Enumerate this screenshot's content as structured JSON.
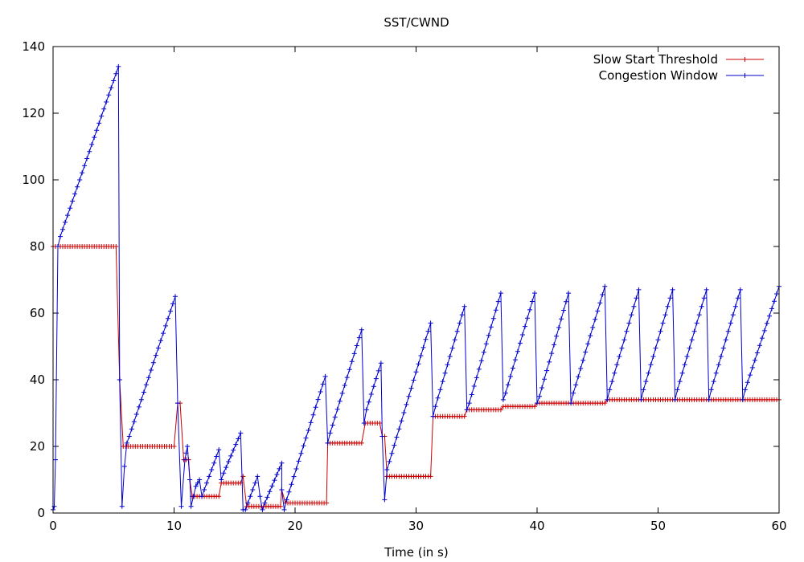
{
  "chart_data": {
    "type": "line",
    "title": "SST/CWND",
    "xlabel": "Time (in s)",
    "ylabel": "",
    "xlim": [
      0,
      60
    ],
    "ylim": [
      0,
      140
    ],
    "xticks": [
      0,
      10,
      20,
      30,
      40,
      50,
      60
    ],
    "yticks": [
      0,
      20,
      40,
      60,
      80,
      100,
      120,
      140
    ],
    "grid": false,
    "legend_position": "top-right",
    "series": [
      {
        "name": "Slow Start Threshold",
        "color": "#cc0000",
        "marker": "plus",
        "segments": [
          {
            "x0": 0,
            "x1": 5.3,
            "step": 0.2,
            "y": 80
          },
          {
            "x0": 5.5,
            "x1": 5.5,
            "step": 0.2,
            "y": 40
          },
          {
            "x0": 5.8,
            "x1": 10.0,
            "step": 0.2,
            "y": 20
          },
          {
            "x0": 10.3,
            "x1": 10.5,
            "step": 0.2,
            "y": 33
          },
          {
            "x0": 10.8,
            "x1": 11.2,
            "step": 0.2,
            "y": 16
          },
          {
            "x0": 11.3,
            "x1": 11.3,
            "step": 0.2,
            "y": 10
          },
          {
            "x0": 11.5,
            "x1": 13.7,
            "step": 0.2,
            "y": 5
          },
          {
            "x0": 13.9,
            "x1": 15.5,
            "step": 0.2,
            "y": 9
          },
          {
            "x0": 15.7,
            "x1": 15.7,
            "step": 0.2,
            "y": 11
          },
          {
            "x0": 16.0,
            "x1": 18.8,
            "step": 0.2,
            "y": 2
          },
          {
            "x0": 18.9,
            "x1": 18.9,
            "step": 0.2,
            "y": 7
          },
          {
            "x0": 19.2,
            "x1": 22.5,
            "step": 0.2,
            "y": 3
          },
          {
            "x0": 22.7,
            "x1": 25.5,
            "step": 0.2,
            "y": 21
          },
          {
            "x0": 25.8,
            "x1": 27.0,
            "step": 0.2,
            "y": 27
          },
          {
            "x0": 27.2,
            "x1": 27.4,
            "step": 0.2,
            "y": 23
          },
          {
            "x0": 27.6,
            "x1": 31.2,
            "step": 0.2,
            "y": 11
          },
          {
            "x0": 31.4,
            "x1": 34.0,
            "step": 0.2,
            "y": 29
          },
          {
            "x0": 34.2,
            "x1": 37.0,
            "step": 0.2,
            "y": 31
          },
          {
            "x0": 37.2,
            "x1": 39.8,
            "step": 0.2,
            "y": 32
          },
          {
            "x0": 40.0,
            "x1": 45.6,
            "step": 0.2,
            "y": 33
          },
          {
            "x0": 45.8,
            "x1": 60.0,
            "step": 0.2,
            "y": 34
          }
        ]
      },
      {
        "name": "Congestion Window",
        "color": "#0000cc",
        "marker": "plus",
        "points": [
          [
            0.0,
            1
          ],
          [
            0.1,
            2
          ],
          [
            0.2,
            16
          ],
          [
            0.4,
            80
          ],
          {
            "ramp": [
              0.6,
              5.3,
              0.2,
              83,
              134
            ]
          },
          [
            5.5,
            40
          ],
          [
            5.7,
            2
          ],
          [
            5.9,
            14
          ],
          [
            6.1,
            21
          ],
          {
            "ramp": [
              6.3,
              10.0,
              0.2,
              23,
              65
            ]
          },
          [
            10.3,
            33
          ],
          [
            10.6,
            2
          ],
          [
            10.9,
            16
          ],
          {
            "ramp": [
              11.0,
              11.1,
              0.1,
              18,
              20
            ]
          },
          [
            11.3,
            10
          ],
          [
            11.4,
            2
          ],
          [
            11.6,
            5
          ],
          {
            "ramp": [
              11.8,
              12.1,
              0.15,
              8,
              10
            ]
          },
          [
            12.3,
            5
          ],
          {
            "ramp": [
              12.5,
              13.7,
              0.2,
              7,
              19
            ]
          },
          [
            13.9,
            10
          ],
          {
            "ramp": [
              14.1,
              15.5,
              0.2,
              12,
              24
            ]
          },
          [
            15.7,
            1
          ],
          [
            15.9,
            1
          ],
          {
            "ramp": [
              16.1,
              16.9,
              0.2,
              3,
              11
            ]
          },
          [
            17.1,
            5
          ],
          [
            17.3,
            1
          ],
          {
            "ramp": [
              17.5,
              18.8,
              0.2,
              3,
              15
            ]
          },
          [
            18.9,
            7
          ],
          [
            19.1,
            1
          ],
          {
            "ramp": [
              19.3,
              22.5,
              0.2,
              4,
              41
            ]
          },
          [
            22.7,
            21
          ],
          {
            "ramp": [
              22.9,
              25.5,
              0.2,
              24,
              55
            ]
          },
          [
            25.7,
            27
          ],
          {
            "ramp": [
              25.9,
              27.0,
              0.2,
              31,
              45
            ]
          },
          [
            27.2,
            23
          ],
          [
            27.4,
            4
          ],
          {
            "ramp": [
              27.6,
              31.2,
              0.2,
              13,
              57
            ]
          },
          [
            31.4,
            29
          ],
          {
            "ramp": [
              31.6,
              34.0,
              0.2,
              32,
              62
            ]
          },
          [
            34.2,
            31
          ],
          {
            "ramp": [
              34.4,
              37.0,
              0.2,
              33,
              66
            ]
          },
          [
            37.2,
            34
          ],
          {
            "ramp": [
              37.4,
              39.8,
              0.2,
              36,
              66
            ]
          },
          [
            40.0,
            33
          ],
          {
            "ramp": [
              40.2,
              42.6,
              0.2,
              35,
              66
            ]
          },
          [
            42.8,
            33
          ],
          {
            "ramp": [
              43.0,
              45.6,
              0.2,
              36,
              68
            ]
          },
          [
            45.8,
            34
          ],
          {
            "ramp": [
              46.0,
              48.4,
              0.2,
              37,
              67
            ]
          },
          [
            48.6,
            34
          ],
          {
            "ramp": [
              48.8,
              51.2,
              0.2,
              37,
              67
            ]
          },
          [
            51.4,
            34
          ],
          {
            "ramp": [
              51.6,
              54.0,
              0.2,
              37,
              67
            ]
          },
          [
            54.2,
            34
          ],
          {
            "ramp": [
              54.4,
              56.8,
              0.2,
              37,
              67
            ]
          },
          [
            57.0,
            34
          ],
          {
            "ramp": [
              57.2,
              60.0,
              0.2,
              37,
              68
            ]
          }
        ]
      }
    ]
  }
}
